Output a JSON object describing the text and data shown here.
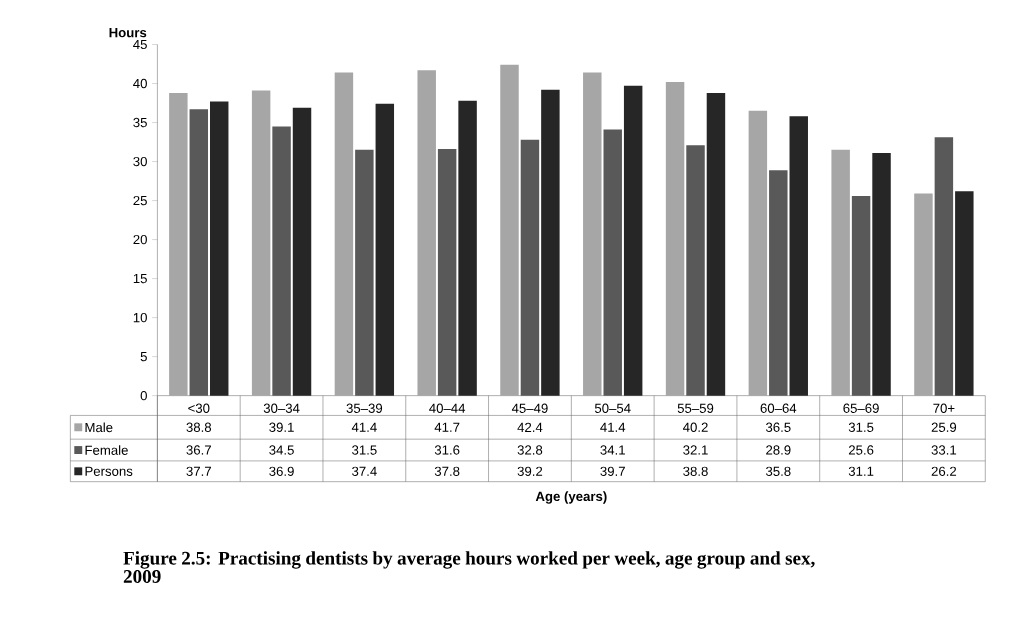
{
  "chart_data": {
    "type": "bar",
    "title": "Figure 2.5: Practising dentists by average hours worked per week, age group and sex, 2009",
    "annotations": [
      "Age (years)"
    ],
    "ylabel": "Hours",
    "categories": [
      "<30",
      "30–34",
      "35–39",
      "40–44",
      "45–49",
      "50–54",
      "55–59",
      "60–64",
      "65–69",
      "70+"
    ],
    "series": [
      {
        "name": "Male",
        "color": "#a6a6a6",
        "values": [
          38.8,
          39.1,
          41.4,
          41.7,
          42.4,
          41.4,
          40.2,
          36.5,
          31.5,
          25.9
        ]
      },
      {
        "name": "Female",
        "color": "#595959",
        "values": [
          36.7,
          34.5,
          31.5,
          31.6,
          32.8,
          34.1,
          32.1,
          28.9,
          25.6,
          33.1
        ]
      },
      {
        "name": "Persons",
        "color": "#262626",
        "values": [
          37.7,
          36.9,
          37.4,
          37.8,
          39.2,
          39.7,
          38.8,
          35.8,
          31.1,
          26.2
        ]
      }
    ],
    "ylim": [
      0,
      45
    ],
    "yticks": [
      0,
      5,
      10,
      15,
      20,
      25,
      30,
      35,
      40,
      45
    ],
    "data_labels": true,
    "legend": "bottom left"
  }
}
